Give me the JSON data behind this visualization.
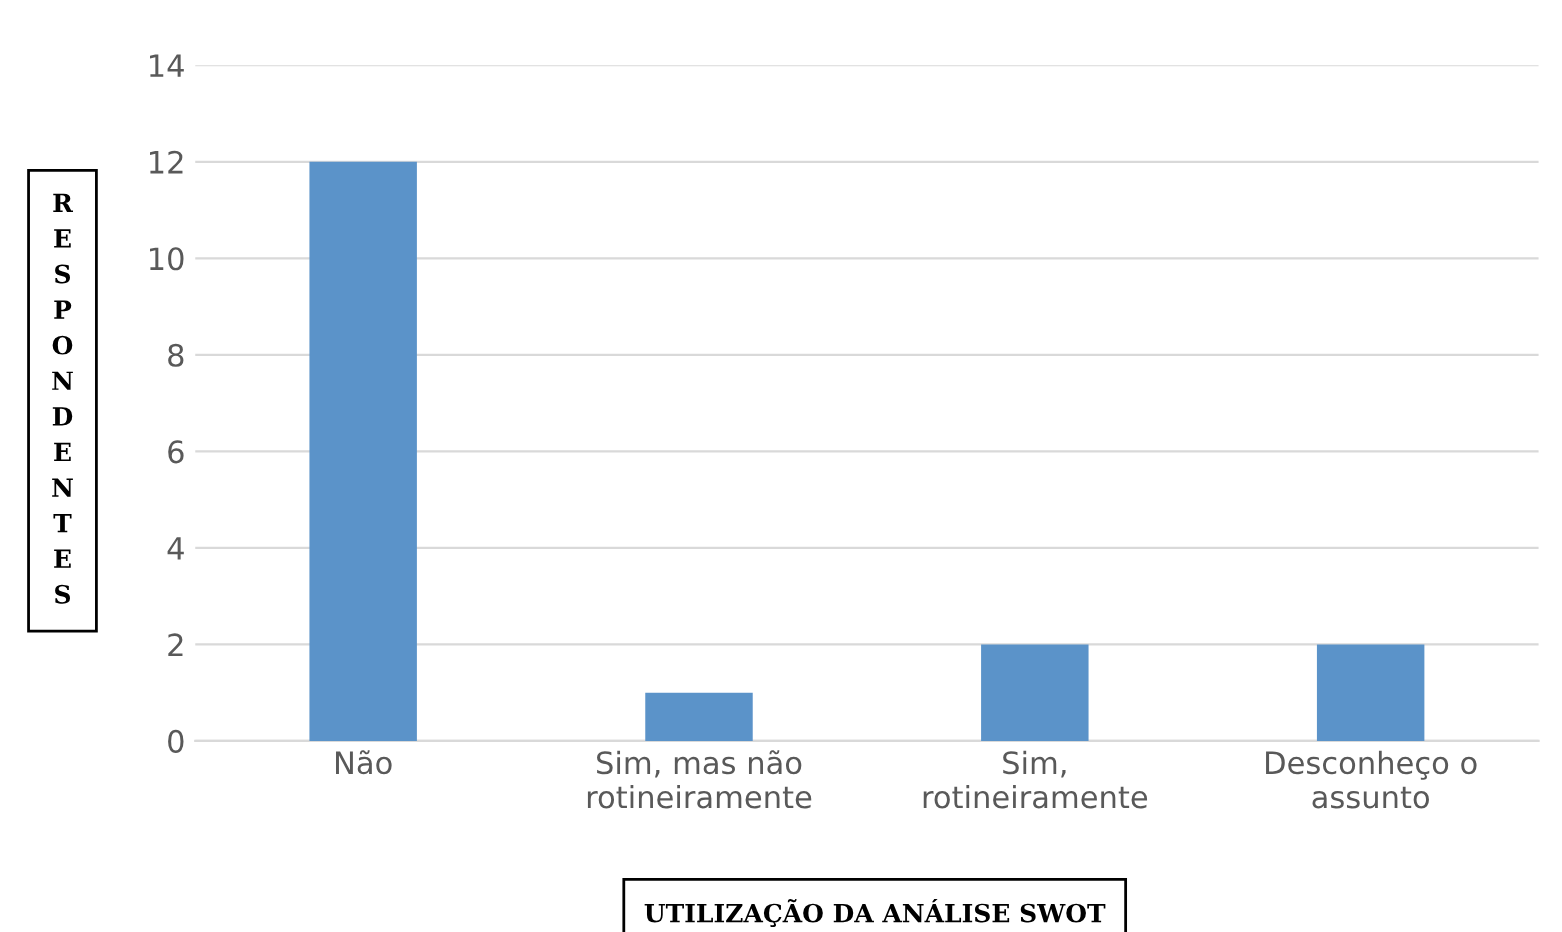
{
  "chart_data": {
    "type": "bar",
    "xlabel": "UTILIZAÇÃO DA ANÁLISE SWOT",
    "ylabel": "RESPONDENTES",
    "categories": [
      "Não",
      "Sim, mas não\nrotineiramente",
      "Sim,\nrotineiramente",
      "Desconheço o\nassunto"
    ],
    "values": [
      12,
      1,
      2,
      2
    ],
    "color": "#5b93c9",
    "ylim": [
      0,
      14
    ],
    "yticks": [
      0,
      2,
      4,
      6,
      8,
      10,
      12,
      14
    ],
    "grid": "y"
  }
}
